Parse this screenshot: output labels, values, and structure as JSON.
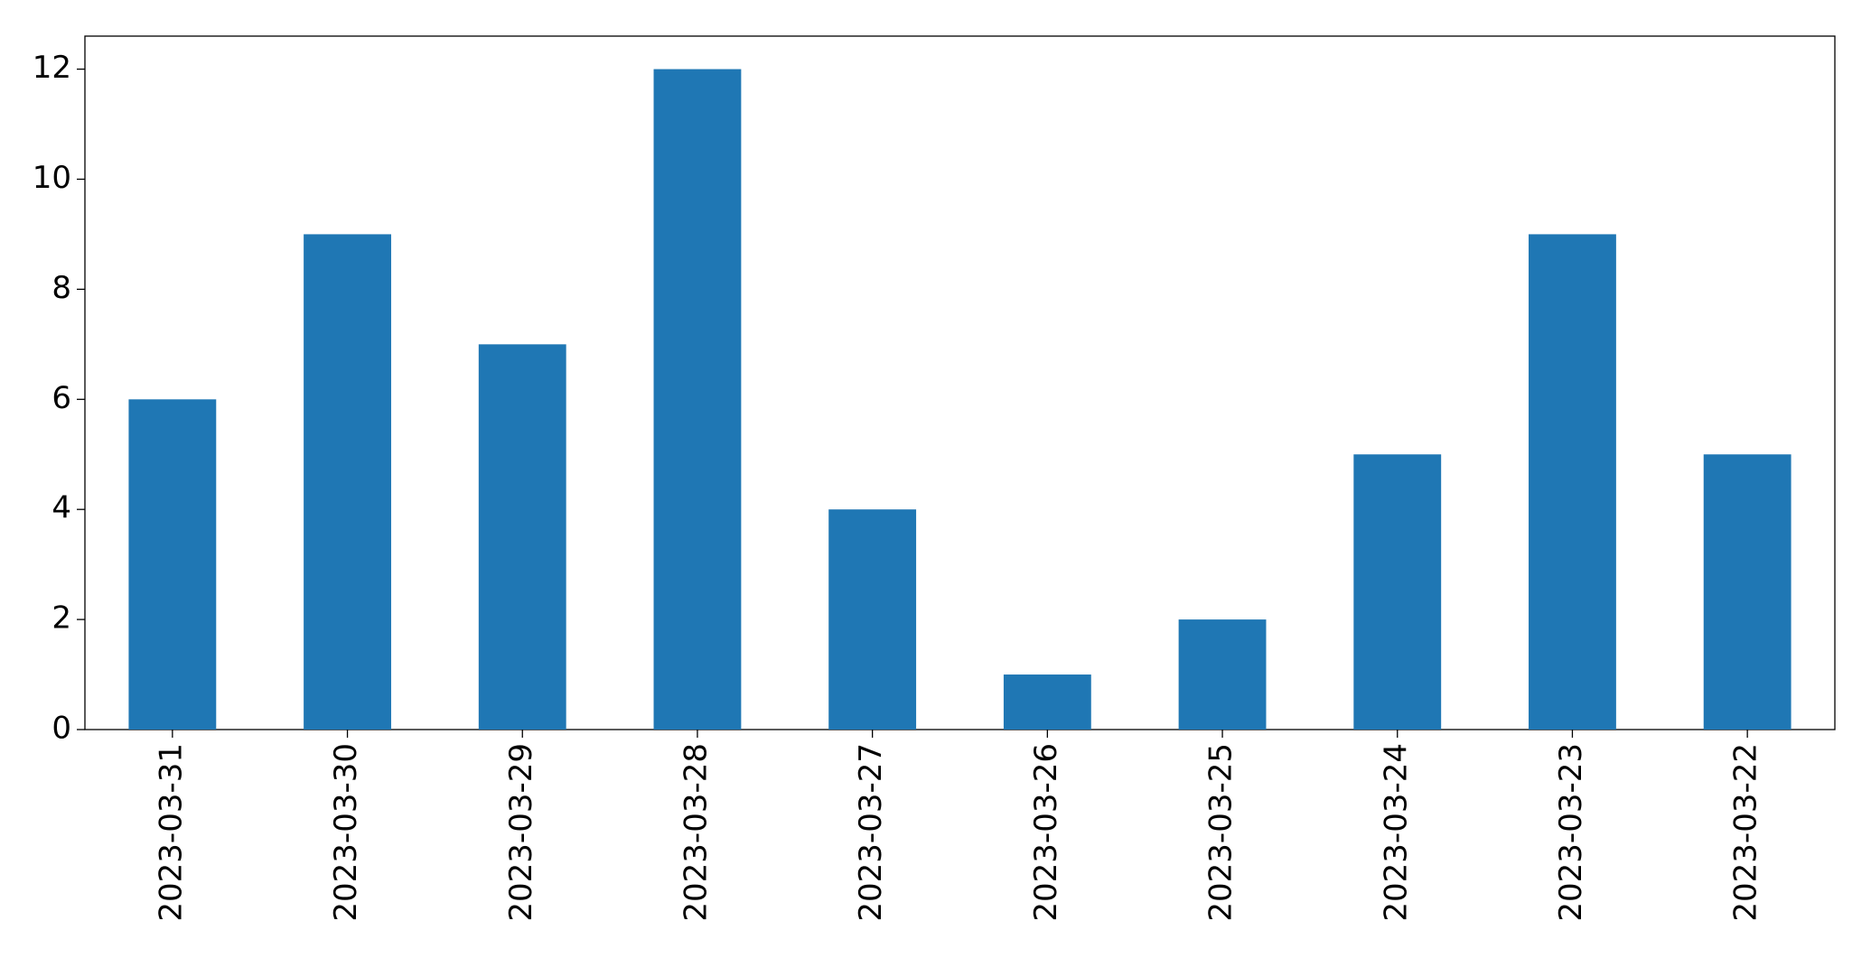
{
  "chart_data": {
    "type": "bar",
    "categories": [
      "2023-03-31",
      "2023-03-30",
      "2023-03-29",
      "2023-03-28",
      "2023-03-27",
      "2023-03-26",
      "2023-03-25",
      "2023-03-24",
      "2023-03-23",
      "2023-03-22"
    ],
    "values": [
      6,
      9,
      7,
      12,
      4,
      1,
      2,
      5,
      9,
      5
    ],
    "color": "#1f77b4",
    "ylim": [
      0,
      12.6
    ],
    "yticks": [
      0,
      2,
      4,
      6,
      8,
      10,
      12
    ],
    "grid": false
  }
}
